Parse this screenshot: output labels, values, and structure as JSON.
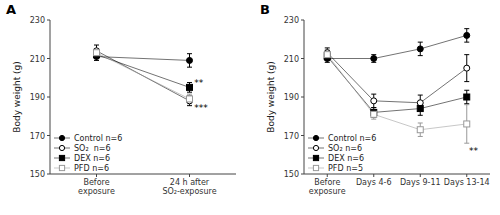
{
  "chart_data": [
    {
      "type": "line",
      "title": "A",
      "categories": [
        "Before\nexposure",
        "24 h after\nSO₂-exposure"
      ],
      "ylabel": "Body weight (g)",
      "ylim": [
        150,
        230
      ],
      "yticks": [
        150,
        170,
        190,
        210,
        230
      ],
      "grid": false,
      "legend": "lower left",
      "series": [
        {
          "name": "Control n=6",
          "color": "black",
          "marker": "circle",
          "values": [
            211,
            209
          ],
          "errors": [
            2.0,
            3.5
          ]
        },
        {
          "name": "SO₂  n=6",
          "color": "black",
          "marker": "circle-open",
          "values": [
            214,
            188
          ],
          "errors": [
            3.0,
            2.5
          ]
        },
        {
          "name": "DEX n=6",
          "color": "black",
          "marker": "square",
          "values": [
            212,
            195
          ],
          "errors": [
            2.0,
            2.5
          ]
        },
        {
          "name": "PFD n=6",
          "color": "#999999",
          "marker": "square-open",
          "values": [
            213,
            189
          ],
          "errors": [
            2.0,
            2.5
          ]
        }
      ],
      "annotations": [
        {
          "text": "**",
          "x": 1.05,
          "y": 197.5
        },
        {
          "text": "***",
          "x": 1.05,
          "y": 184.5
        }
      ]
    },
    {
      "type": "line",
      "title": "B",
      "categories": [
        "Before\nexposure",
        "Days 4-6",
        "Days 9-11",
        "Days 13-14"
      ],
      "ylabel": "Body weight (g)",
      "ylim": [
        150,
        230
      ],
      "yticks": [
        150,
        170,
        190,
        210,
        230
      ],
      "grid": false,
      "legend": "lower left",
      "series": [
        {
          "name": "Control n=6",
          "color": "black",
          "marker": "circle",
          "values": [
            210,
            210,
            215,
            222
          ],
          "errors": [
            2.0,
            2.0,
            3.5,
            3.5
          ]
        },
        {
          "name": "SO₂ n=6",
          "color": "black",
          "marker": "circle-open",
          "values": [
            213,
            188,
            187,
            205
          ],
          "errors": [
            2.5,
            3.5,
            4.0,
            7.0
          ]
        },
        {
          "name": "DEX n=6",
          "color": "black",
          "marker": "square",
          "values": [
            211,
            182,
            184,
            190
          ],
          "errors": [
            2.0,
            2.5,
            3.5,
            3.5
          ]
        },
        {
          "name": "PFD n=5",
          "color": "#999999",
          "marker": "square-open",
          "values": [
            212,
            181,
            173,
            176
          ],
          "errors": [
            2.5,
            2.5,
            3.5,
            10.0
          ]
        }
      ],
      "annotations": [
        {
          "text": "**",
          "x": 3.05,
          "y": 162
        }
      ]
    }
  ]
}
